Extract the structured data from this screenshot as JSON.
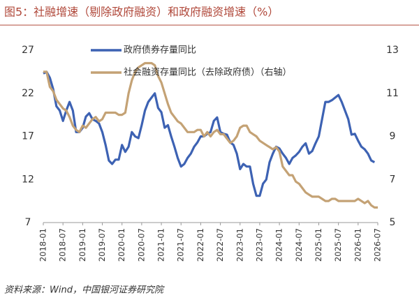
{
  "chart_data": {
    "type": "line",
    "title": "图5：社融增速（剔除政府融资）和政府融资增速（%）",
    "source": "资料来源：Wind，中国银河证券研究院",
    "categories": [
      "2018-01",
      null,
      null,
      null,
      null,
      null,
      "2018-07",
      null,
      null,
      null,
      null,
      null,
      "2019-01",
      null,
      null,
      null,
      null,
      null,
      "2019-07",
      null,
      null,
      null,
      null,
      null,
      "2020-01",
      null,
      null,
      null,
      null,
      null,
      "2020-07",
      null,
      null,
      null,
      null,
      null,
      "2021-01",
      null,
      null,
      null,
      null,
      null,
      "2021-07",
      null,
      null,
      null,
      null,
      null,
      "2022-01",
      null,
      null,
      null,
      null,
      null,
      "2022-07",
      null,
      null,
      null,
      null,
      null,
      "2023-01",
      null,
      null,
      null,
      null,
      null,
      "2023-07",
      null,
      null,
      null,
      null,
      null,
      "2024-01",
      null,
      null,
      null,
      null,
      null,
      "2024-07",
      null,
      null,
      null,
      null,
      null,
      "2025-01",
      null,
      null,
      null,
      null,
      null,
      "2025-07",
      null,
      null,
      null,
      null,
      null,
      "2026-01",
      null,
      null,
      null,
      null,
      null,
      "2026-07"
    ],
    "ylim": [
      7,
      27
    ],
    "yticks": [
      7,
      12,
      17,
      22,
      27
    ],
    "y2lim": [
      5,
      13
    ],
    "y2ticks": [
      5,
      7,
      9,
      11,
      13
    ],
    "legend": "top",
    "series": [
      {
        "name": "政府债券存量同比",
        "color": "#3d62b3",
        "values": [
          24.3,
          24.5,
          23.8,
          22.5,
          20.5,
          20.0,
          18.8,
          20.0,
          21.0,
          20.0,
          17.5,
          17.5,
          18.0,
          19.3,
          19.7,
          19.0,
          18.8,
          18.5,
          17.5,
          16.0,
          14.2,
          13.8,
          14.3,
          14.3,
          16.0,
          15.2,
          15.8,
          17.5,
          17.0,
          16.8,
          18.3,
          20.0,
          21.0,
          21.5,
          22.0,
          20.3,
          19.8,
          18.0,
          18.3,
          17.0,
          15.8,
          14.5,
          13.5,
          13.8,
          14.5,
          15.0,
          15.8,
          16.3,
          17.0,
          17.0,
          17.3,
          17.5,
          18.8,
          19.2,
          17.5,
          17.3,
          17.2,
          16.3,
          16.0,
          15.0,
          13.2,
          13.8,
          13.5,
          13.5,
          11.5,
          10.1,
          10.1,
          11.5,
          12.0,
          14.0,
          15.0,
          15.8,
          15.6,
          15.0,
          14.5,
          13.8,
          14.5,
          14.8,
          15.2,
          15.8,
          16.2,
          15.0,
          15.3,
          16.2,
          17.0,
          19.0,
          21.0,
          21.0,
          21.2,
          21.5,
          21.8,
          21.0,
          20.0,
          19.0,
          17.2,
          17.3,
          16.5,
          15.8,
          15.5,
          15.0,
          14.2,
          14.0,
          null
        ]
      },
      {
        "name": "社会融资存量同比（去除政府债）（右轴）",
        "color": "#c4a275",
        "axis": "y2",
        "values": [
          12.0,
          12.0,
          11.3,
          11.1,
          10.7,
          10.5,
          10.3,
          10.2,
          9.9,
          9.5,
          9.3,
          9.2,
          9.5,
          9.4,
          9.6,
          9.8,
          9.9,
          9.7,
          9.8,
          10.1,
          10.1,
          10.1,
          10.1,
          10.0,
          10.0,
          10.1,
          11.0,
          11.6,
          12.0,
          12.2,
          12.3,
          12.4,
          12.4,
          12.4,
          12.3,
          11.8,
          11.5,
          11.0,
          10.5,
          10.1,
          9.9,
          9.7,
          9.6,
          9.4,
          9.2,
          9.2,
          9.2,
          9.3,
          9.3,
          9.0,
          9.2,
          9.0,
          9.2,
          9.3,
          9.1,
          9.1,
          8.9,
          8.7,
          8.8,
          9.0,
          9.4,
          9.5,
          9.5,
          9.2,
          9.1,
          9.0,
          8.8,
          8.7,
          8.6,
          8.5,
          8.4,
          8.5,
          8.3,
          7.6,
          7.4,
          7.2,
          7.2,
          6.9,
          6.8,
          6.6,
          6.4,
          6.3,
          6.2,
          6.2,
          6.2,
          6.1,
          6.0,
          6.0,
          6.1,
          6.1,
          6.0,
          6.0,
          6.0,
          6.0,
          6.0,
          6.0,
          6.1,
          6.0,
          5.9,
          6.0,
          5.8,
          5.7,
          5.7
        ]
      }
    ]
  }
}
